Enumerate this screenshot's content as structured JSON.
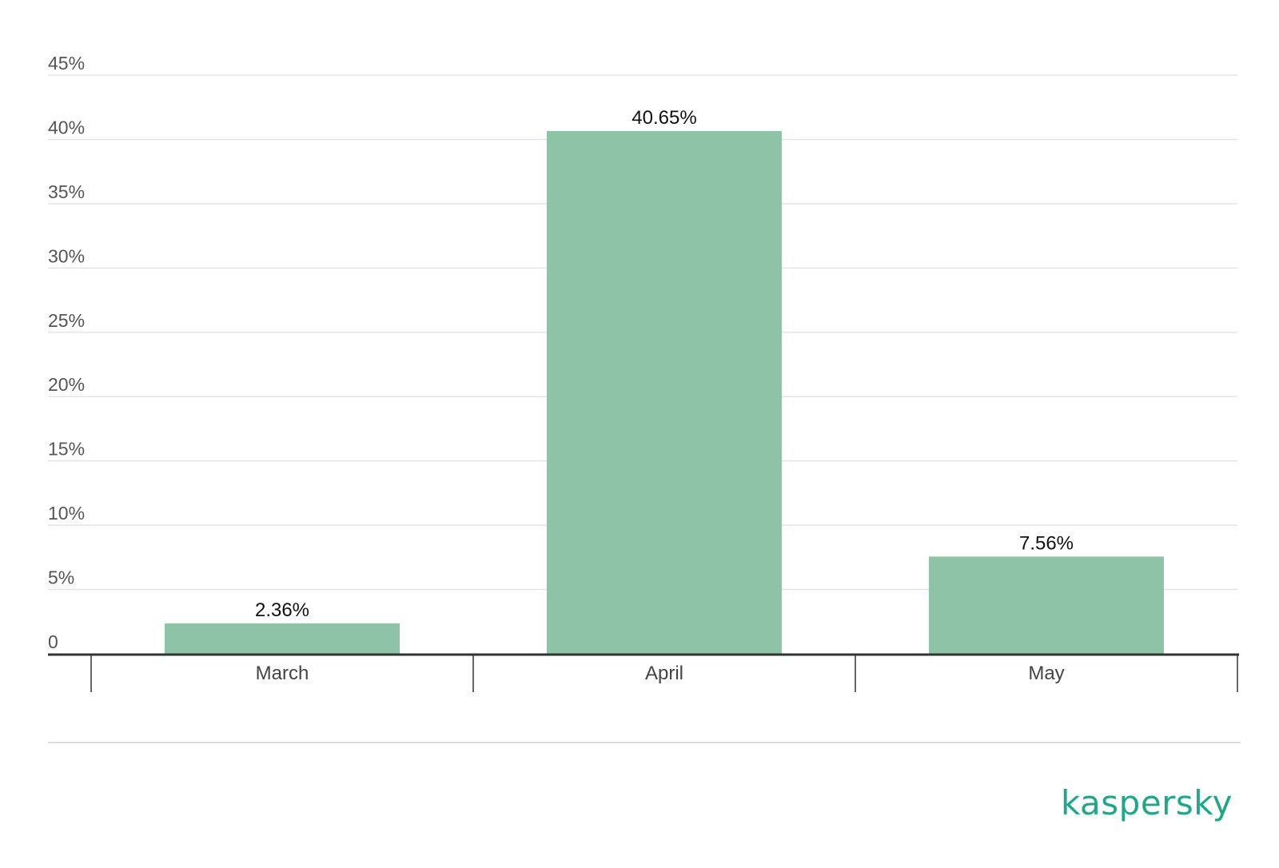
{
  "chart_data": {
    "type": "bar",
    "categories": [
      "March",
      "April",
      "May"
    ],
    "values": [
      2.36,
      40.65,
      7.56
    ],
    "data_labels": [
      "2.36%",
      "40.65%",
      "7.56%"
    ],
    "y_ticks": [
      0,
      5,
      10,
      15,
      20,
      25,
      30,
      35,
      40,
      45
    ],
    "y_tick_labels": [
      "0",
      "5%",
      "10%",
      "15%",
      "20%",
      "25%",
      "30%",
      "35%",
      "40%",
      "45%"
    ],
    "ylim": [
      0,
      45
    ],
    "grid": true,
    "legend": "none",
    "bar_color": "#8fc3a7"
  },
  "logo": {
    "text": "kaspersky",
    "color": "#1ea889"
  }
}
